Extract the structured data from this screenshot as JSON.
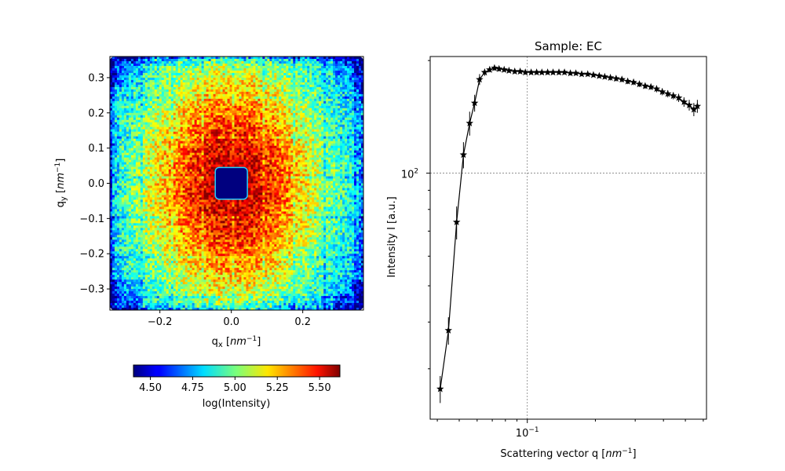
{
  "chart_data": [
    {
      "type": "heatmap",
      "title": "",
      "xlabel": "q_x [nm^-1]",
      "ylabel": "q_y [nm^-1]",
      "xlim": [
        -0.34,
        0.37
      ],
      "ylim": [
        -0.36,
        0.36
      ],
      "x_ticks": [
        -0.2,
        0.0,
        0.2
      ],
      "x_tick_labels": [
        "−0.2",
        "0.0",
        "0.2"
      ],
      "y_ticks": [
        -0.3,
        -0.2,
        -0.1,
        0.0,
        0.1,
        0.2,
        0.3
      ],
      "y_tick_labels": [
        "−0.3",
        "−0.2",
        "−0.1",
        "0.0",
        "0.1",
        "0.2",
        "0.3"
      ],
      "colormap": "jet",
      "beamstop": {
        "x": [
          -0.045,
          0.045
        ],
        "y": [
          -0.045,
          0.045
        ]
      },
      "colorbar": {
        "label": "log(Intensity)",
        "range": [
          4.4,
          5.62
        ],
        "ticks": [
          4.5,
          4.75,
          5.0,
          5.25,
          5.5
        ],
        "tick_labels": [
          "4.50",
          "4.75",
          "5.00",
          "5.25",
          "5.50"
        ],
        "orientation": "horizontal"
      }
    },
    {
      "type": "line",
      "title": "Sample: EC",
      "xlabel": "Scattering vector q [nm^-1]",
      "ylabel": "Intensity I [a.u.]",
      "xscale": "log",
      "yscale": "log",
      "xlim": [
        0.0372,
        0.62
      ],
      "ylim": [
        22,
        205
      ],
      "x_tick_labels": [
        {
          "value": 0.1,
          "label": "10",
          "exp": "−1"
        }
      ],
      "y_tick_labels": [
        {
          "value": 100,
          "label": "10",
          "exp": "2"
        }
      ],
      "grid": true,
      "marker": "star",
      "color": "#000000",
      "x": [
        0.0412,
        0.0448,
        0.0487,
        0.0522,
        0.0556,
        0.0585,
        0.0615,
        0.0648,
        0.0682,
        0.0716,
        0.075,
        0.079,
        0.083,
        0.088,
        0.093,
        0.098,
        0.104,
        0.11,
        0.116,
        0.123,
        0.13,
        0.138,
        0.146,
        0.155,
        0.164,
        0.174,
        0.185,
        0.196,
        0.208,
        0.22,
        0.233,
        0.247,
        0.262,
        0.278,
        0.295,
        0.313,
        0.332,
        0.352,
        0.373,
        0.395,
        0.418,
        0.442,
        0.467,
        0.493,
        0.52,
        0.545,
        0.565
      ],
      "y": [
        26.5,
        38,
        74,
        112,
        136,
        154,
        178,
        186,
        189,
        191,
        190,
        189,
        188,
        187,
        187,
        186,
        186,
        186,
        186,
        186,
        186,
        186,
        186,
        185,
        185,
        184,
        184,
        183,
        182,
        181,
        180,
        179,
        178,
        176,
        175,
        173,
        171,
        170,
        168,
        165,
        163,
        161,
        159,
        155,
        152,
        148,
        151
      ],
      "yerr": [
        2.2,
        3.2,
        7.5,
        9,
        10,
        8,
        6,
        4,
        3,
        3,
        3,
        2.5,
        2.5,
        2.5,
        2.5,
        2.5,
        2.5,
        2.5,
        2.5,
        2.5,
        2.5,
        2.5,
        2.5,
        2.5,
        2.5,
        2.5,
        2.5,
        2.5,
        2.5,
        2.5,
        3,
        3,
        3,
        3,
        3,
        3,
        3,
        3,
        3.5,
        3.5,
        3.5,
        3.5,
        4,
        4.5,
        5,
        6,
        6
      ]
    }
  ]
}
